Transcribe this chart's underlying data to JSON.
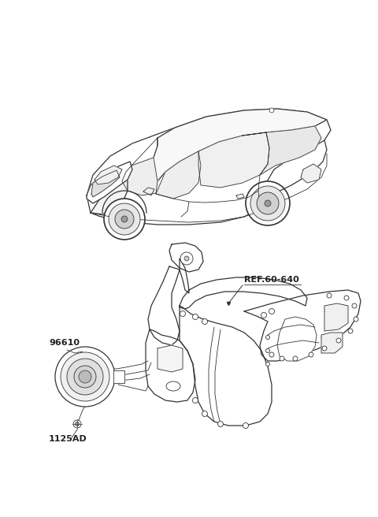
{
  "background_color": "#ffffff",
  "line_color": "#333333",
  "text_color": "#222222",
  "thin_lw": 0.6,
  "med_lw": 0.9,
  "thick_lw": 1.2,
  "labels": {
    "ref": "REF.60-640",
    "part1": "96610",
    "part2": "1125AD"
  },
  "figsize": [
    4.8,
    6.56
  ],
  "dpi": 100
}
